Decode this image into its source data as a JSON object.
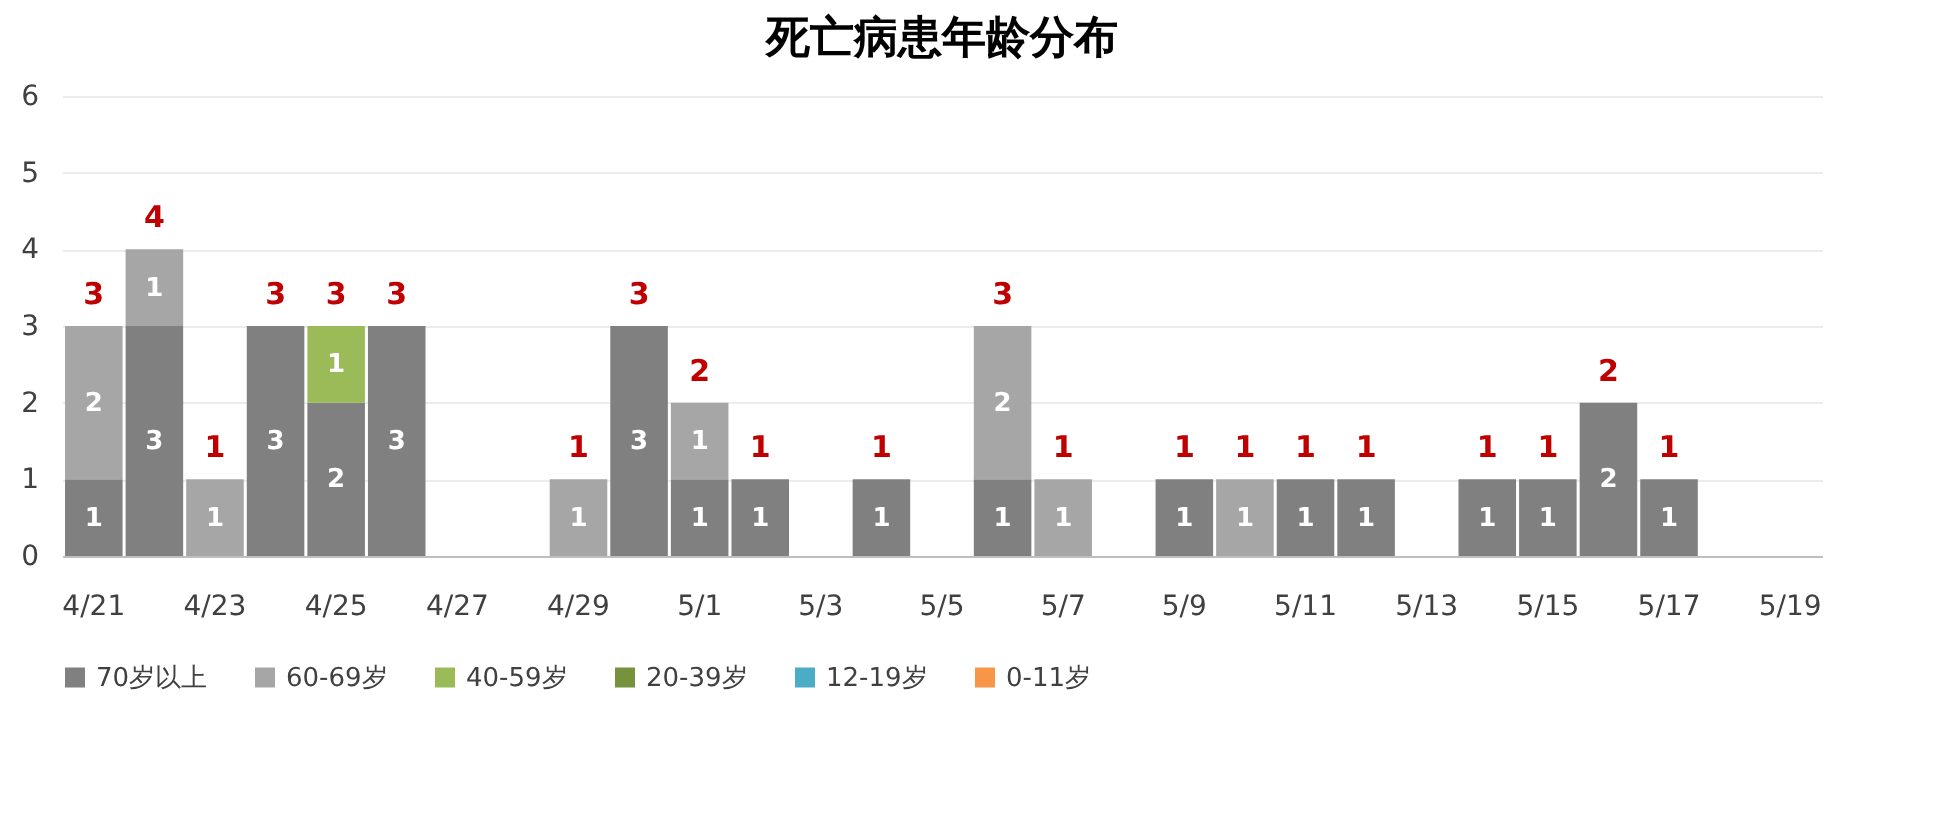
{
  "chart_data": {
    "type": "bar",
    "title": "死亡病患年龄分布",
    "stacked": true,
    "data_labels": true,
    "grid": "y",
    "legend": "bottom",
    "categories": [
      "4/21",
      null,
      "4/23",
      null,
      "4/25",
      null,
      "4/27",
      null,
      "4/29",
      null,
      "5/1",
      null,
      "5/3",
      null,
      "5/5",
      null,
      "5/7",
      null,
      "5/9",
      null,
      "5/11",
      null,
      "5/13",
      null,
      "5/15",
      null,
      "5/17",
      null,
      "5/19"
    ],
    "ylim": [
      0,
      6
    ],
    "yticks": [
      0,
      1,
      2,
      3,
      4,
      5,
      6
    ],
    "series": [
      {
        "name": "70岁以上",
        "color": "#808080",
        "values": [
          1,
          3,
          null,
          3,
          2,
          3,
          null,
          null,
          null,
          3,
          1,
          1,
          null,
          1,
          null,
          1,
          null,
          null,
          1,
          null,
          1,
          1,
          null,
          1,
          1,
          2,
          1,
          null,
          null
        ]
      },
      {
        "name": "60-69岁",
        "color": "#a6a6a6",
        "values": [
          2,
          1,
          1,
          null,
          null,
          null,
          null,
          null,
          1,
          null,
          1,
          null,
          null,
          null,
          null,
          2,
          1,
          null,
          null,
          1,
          null,
          null,
          null,
          null,
          null,
          null,
          null,
          null,
          null
        ]
      },
      {
        "name": "40-59岁",
        "color": "#9bbb59",
        "values": [
          null,
          null,
          null,
          null,
          1,
          null,
          null,
          null,
          null,
          null,
          null,
          null,
          null,
          null,
          null,
          null,
          null,
          null,
          null,
          null,
          null,
          null,
          null,
          null,
          null,
          null,
          null,
          null,
          null
        ]
      },
      {
        "name": "20-39岁",
        "color": "#76923c",
        "values": [
          null,
          null,
          null,
          null,
          null,
          null,
          null,
          null,
          null,
          null,
          null,
          null,
          null,
          null,
          null,
          null,
          null,
          null,
          null,
          null,
          null,
          null,
          null,
          null,
          null,
          null,
          null,
          null,
          null
        ]
      },
      {
        "name": "12-19岁",
        "color": "#4bacc6",
        "values": [
          null,
          null,
          null,
          null,
          null,
          null,
          null,
          null,
          null,
          null,
          null,
          null,
          null,
          null,
          null,
          null,
          null,
          null,
          null,
          null,
          null,
          null,
          null,
          null,
          null,
          null,
          null,
          null,
          null
        ]
      },
      {
        "name": "0-11岁",
        "color": "#f79646",
        "values": [
          null,
          null,
          null,
          null,
          null,
          null,
          null,
          null,
          null,
          null,
          null,
          null,
          null,
          null,
          null,
          null,
          null,
          null,
          null,
          null,
          null,
          null,
          null,
          null,
          null,
          null,
          null,
          null,
          null
        ]
      }
    ],
    "totals": [
      "3",
      "4",
      "1",
      "3",
      "3",
      "3",
      null,
      null,
      "1",
      "3",
      "2",
      "1",
      null,
      "1",
      null,
      "3",
      "1",
      null,
      "1",
      "1",
      "1",
      "1",
      null,
      "1",
      "1",
      "2",
      "1",
      null,
      null
    ]
  }
}
